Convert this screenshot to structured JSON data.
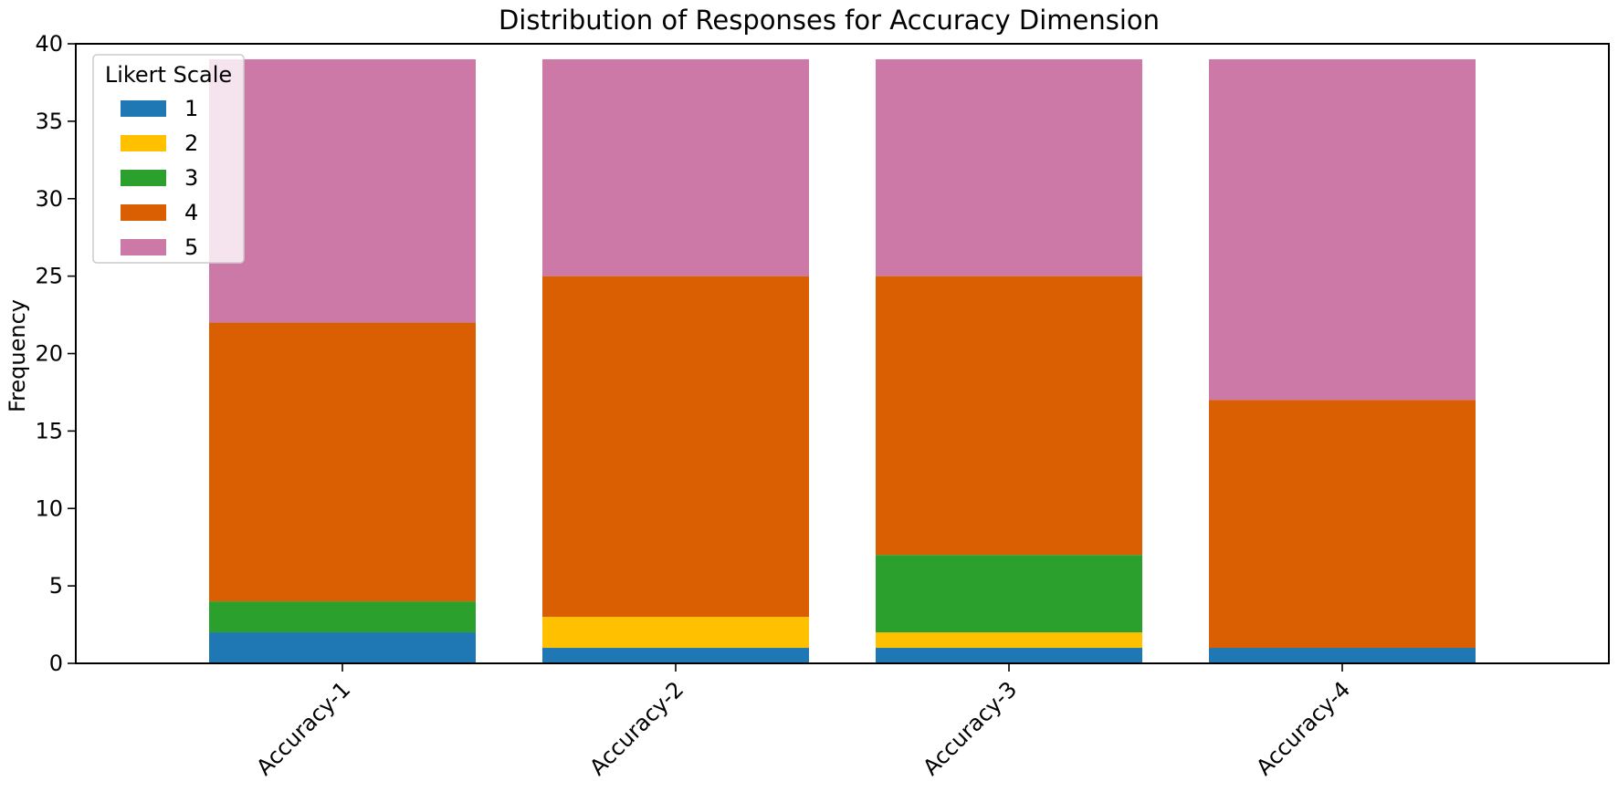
{
  "chart_data": {
    "type": "bar",
    "stacked": true,
    "title": "Distribution of Responses for Accuracy Dimension",
    "xlabel": "",
    "ylabel": "Frequency",
    "ylim": [
      0,
      40
    ],
    "yticks": [
      0,
      5,
      10,
      15,
      20,
      25,
      30,
      35,
      40
    ],
    "grid": false,
    "categories": [
      "Accuracy-1",
      "Accuracy-2",
      "Accuracy-3",
      "Accuracy-4"
    ],
    "legend": {
      "title": "Likert Scale",
      "placement": "top-left"
    },
    "series": [
      {
        "name": "1",
        "color": "#1f77b4",
        "values": [
          2,
          1,
          1,
          1
        ]
      },
      {
        "name": "2",
        "color": "#ffc000",
        "values": [
          0,
          2,
          1,
          0
        ]
      },
      {
        "name": "3",
        "color": "#2ca02c",
        "values": [
          2,
          0,
          5,
          0
        ]
      },
      {
        "name": "4",
        "color": "#d95f02",
        "values": [
          18,
          22,
          18,
          16
        ]
      },
      {
        "name": "5",
        "color": "#cc79a7",
        "values": [
          17,
          14,
          14,
          22
        ]
      }
    ]
  }
}
